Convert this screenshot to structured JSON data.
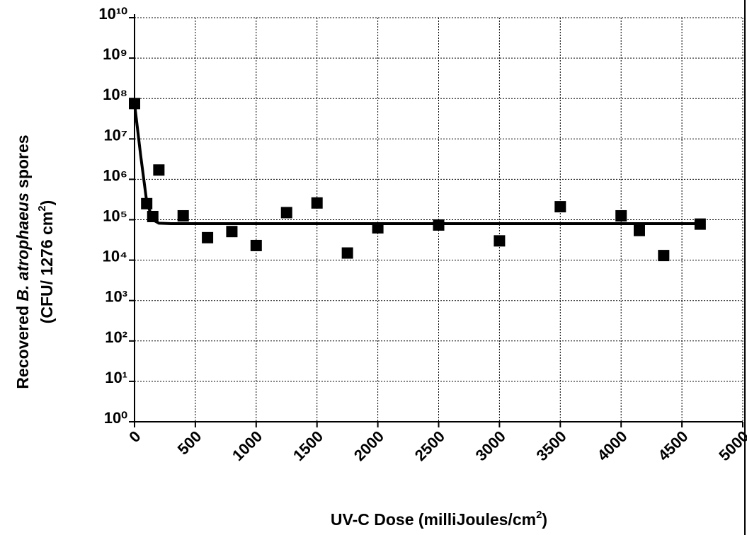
{
  "chart_data": {
    "type": "scatter",
    "x_label": [
      "UV-C Dose (milliJoules/cm",
      "2",
      ")"
    ],
    "y_label": [
      [
        "Recovered ",
        "B. atrophaeus",
        " spores"
      ],
      [
        "(CFU/ 1276 cm",
        "2",
        ")"
      ]
    ],
    "xlim": [
      0,
      5000
    ],
    "xticks": [
      0,
      500,
      1000,
      1500,
      2000,
      2500,
      3000,
      3500,
      4000,
      4500,
      5000
    ],
    "ylim": [
      1,
      10000000000
    ],
    "yscale": "log",
    "yticks": [
      {
        "value": 1,
        "label": "10⁰"
      },
      {
        "value": 10,
        "label": "10¹"
      },
      {
        "value": 100,
        "label": "10²"
      },
      {
        "value": 1000,
        "label": "10³"
      },
      {
        "value": 10000,
        "label": "10⁴"
      },
      {
        "value": 100000,
        "label": "10⁵"
      },
      {
        "value": 1000000,
        "label": "10⁶"
      },
      {
        "value": 10000000,
        "label": "10⁷"
      },
      {
        "value": 100000000,
        "label": "10⁸"
      },
      {
        "value": 1000000000,
        "label": "10⁹"
      },
      {
        "value": 10000000000,
        "label": "10¹⁰"
      }
    ],
    "grid": true,
    "series": [
      {
        "kind": "markers",
        "color": "#000000",
        "x": [
          0,
          100,
          150,
          200,
          400,
          600,
          800,
          1000,
          1250,
          1500,
          1750,
          2000,
          2500,
          3000,
          3500,
          4000,
          4150,
          4350,
          4650
        ],
        "values": [
          75000000,
          250000,
          120000,
          1700000,
          125000,
          36000,
          51000,
          23000,
          150000,
          260000,
          15000,
          63000,
          74000,
          30000,
          210000,
          125000,
          54000,
          13000,
          78000
        ]
      },
      {
        "kind": "line",
        "color": "#000000",
        "x": [
          0,
          50,
          100,
          150,
          200,
          300,
          4650
        ],
        "values": [
          75000000,
          4000000,
          280000,
          100000,
          82000,
          80000,
          80000
        ]
      }
    ]
  }
}
